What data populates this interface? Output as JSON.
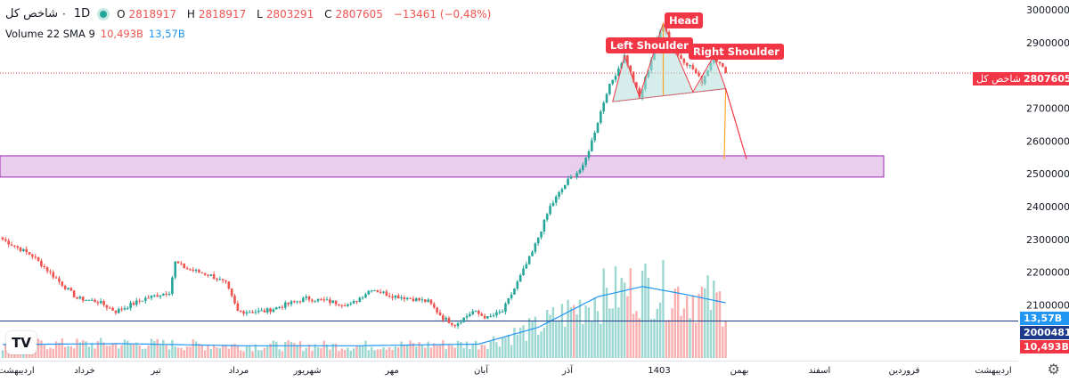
{
  "header": {
    "symbol": "شاخص کل",
    "timeframe": "1D",
    "ohlc": {
      "open_label": "O",
      "open": "2818917",
      "high_label": "H",
      "high": "2818917",
      "low_label": "L",
      "low": "2803291",
      "close_label": "C",
      "close": "2807605",
      "change": "−13461 (−0,48%)"
    },
    "volume": {
      "label": "Volume 22 SMA 9",
      "value": "10,493B",
      "sma": "13,57B"
    }
  },
  "logo_text": "TV",
  "pattern_labels": {
    "left_shoulder": "Left Shoulder",
    "head": "Head",
    "right_shoulder": "Right Shoulder"
  },
  "price_tags": {
    "symbol_name": "شاخص کل",
    "last_price": "2807605",
    "volume_sma": "13,57B",
    "volume_level": "2000481",
    "volume_value": "10,493B"
  },
  "colors": {
    "up": "#26a69a",
    "down": "#ef5350",
    "accent": "#f23645",
    "zone_fill": "#e1bee7",
    "zone_border": "#9c27b0",
    "sma": "#2196f3",
    "navy": "#1e3a8a"
  },
  "chart_data": {
    "type": "candlestick",
    "title": "شاخص کل · 1D",
    "y_axis_ticks": [
      2100000,
      2200000,
      2300000,
      2400000,
      2500000,
      2600000,
      2700000,
      2800000,
      2900000,
      3000000
    ],
    "ylim": [
      2025000,
      3025000
    ],
    "x_tick_labels": [
      "اردیبهشت",
      "خرداد",
      "تیر",
      "مرداد",
      "شهریور",
      "مهر",
      "آبان",
      "آذر",
      "1403",
      "بهمن",
      "اسفند",
      "فروردین",
      "اردیبهشت"
    ],
    "anchors": [
      [
        0,
        2300000
      ],
      [
        10,
        2250000
      ],
      [
        18,
        2180000
      ],
      [
        25,
        2120000
      ],
      [
        32,
        2110000
      ],
      [
        38,
        2080000
      ],
      [
        48,
        2120000
      ],
      [
        56,
        2140000
      ],
      [
        58,
        2230000
      ],
      [
        62,
        2210000
      ],
      [
        70,
        2190000
      ],
      [
        75,
        2165000
      ],
      [
        79,
        2080000
      ],
      [
        88,
        2080000
      ],
      [
        95,
        2100000
      ],
      [
        102,
        2120000
      ],
      [
        110,
        2110000
      ],
      [
        117,
        2100000
      ],
      [
        124,
        2150000
      ],
      [
        130,
        2130000
      ],
      [
        137,
        2120000
      ],
      [
        143,
        2110000
      ],
      [
        148,
        2060000
      ],
      [
        152,
        2040000
      ],
      [
        158,
        2080000
      ],
      [
        163,
        2060000
      ],
      [
        168,
        2080000
      ],
      [
        172,
        2150000
      ],
      [
        178,
        2260000
      ],
      [
        184,
        2400000
      ],
      [
        190,
        2480000
      ],
      [
        195,
        2520000
      ],
      [
        198,
        2600000
      ],
      [
        203,
        2750000
      ],
      [
        209,
        2860000
      ],
      [
        214,
        2730000
      ],
      [
        219,
        2880000
      ],
      [
        222,
        2960000
      ],
      [
        226,
        2870000
      ],
      [
        232,
        2820000
      ],
      [
        235,
        2780000
      ],
      [
        239,
        2860000
      ],
      [
        243,
        2807605
      ]
    ],
    "volume_sma_anchors": [
      [
        0,
        330000000.0
      ],
      [
        40,
        350000000.0
      ],
      [
        80,
        300000000.0
      ],
      [
        120,
        300000000.0
      ],
      [
        160,
        340000000.0
      ],
      [
        180,
        750000000.0
      ],
      [
        200,
        1500000000.0
      ],
      [
        215,
        1750000000.0
      ],
      [
        230,
        1550000000.0
      ],
      [
        243,
        1350000000.0
      ]
    ],
    "last_close": 2807605,
    "pattern_points": {
      "left_shoulder": [
        209,
        2860000
      ],
      "head": [
        222,
        2960000
      ],
      "right_shoulder": [
        239,
        2860000
      ],
      "neckline": [
        [
          205,
          2720000
        ],
        [
          243,
          2760000
        ]
      ],
      "target_projection": [
        [
          243,
          2760000
        ],
        [
          250,
          2545000
        ]
      ]
    },
    "support_zone": [
      2490000,
      2555000
    ]
  }
}
